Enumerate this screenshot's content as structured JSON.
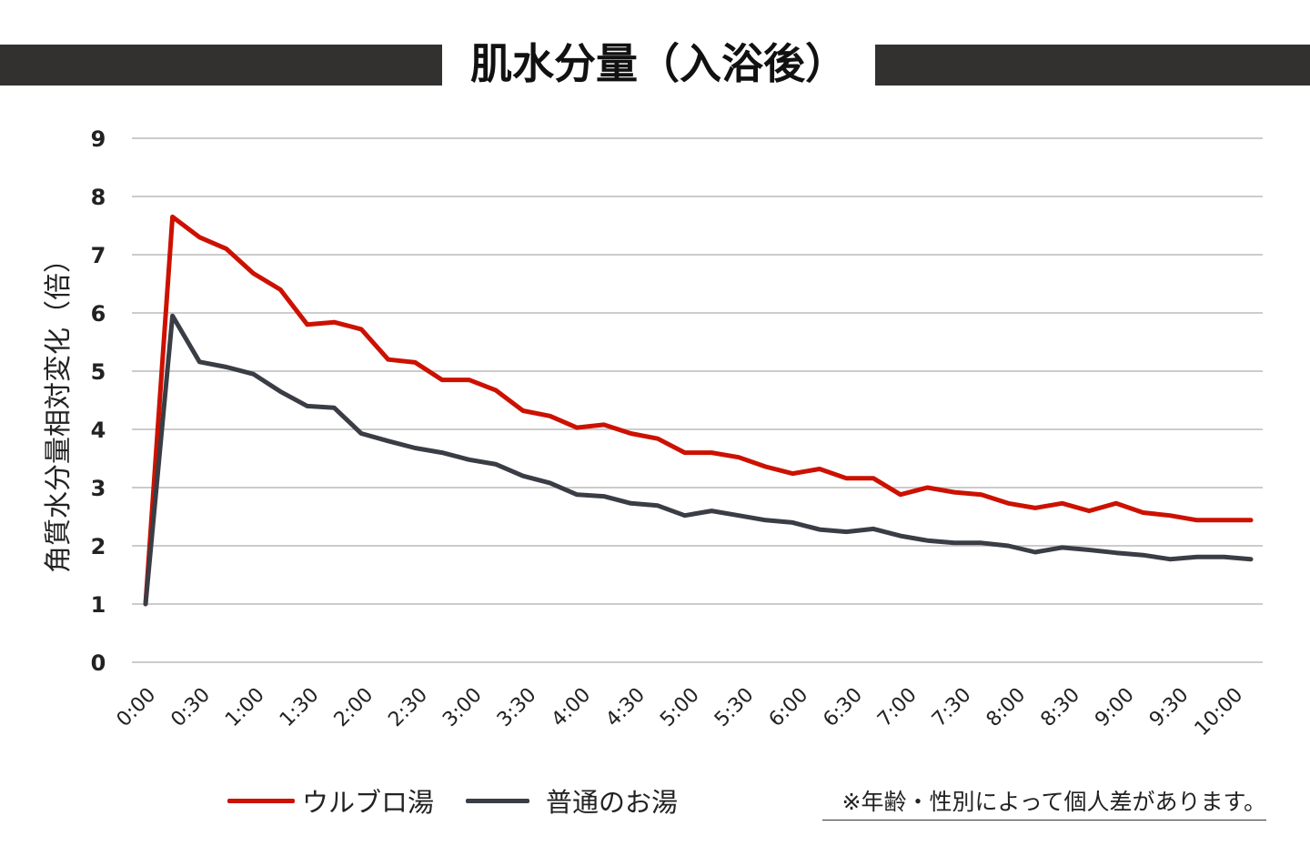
{
  "title": "肌水分量（入浴後）",
  "note": "※年齢・性別によって個人差があります。",
  "colors": {
    "header_band": "#333030",
    "grid": "#cccccc",
    "series_1": "#cc1100",
    "series_2": "#3a3d45"
  },
  "chart_data": {
    "type": "line",
    "title": "肌水分量（入浴後）",
    "xlabel": "",
    "ylabel": "角質水分量相対変化（倍）",
    "ylim": [
      0,
      9
    ],
    "yticks": [
      "0",
      "1",
      "2",
      "3",
      "4",
      "5",
      "6",
      "7",
      "8",
      "9"
    ],
    "xtick_labels": [
      "0:00",
      "0:30",
      "1:00",
      "1:30",
      "2:00",
      "2:30",
      "3:00",
      "3:30",
      "4:00",
      "4:30",
      "5:00",
      "5:30",
      "6:00",
      "6:30",
      "7:00",
      "7:30",
      "8:00",
      "8:30",
      "9:00",
      "9:30",
      "10:00"
    ],
    "grid": true,
    "legend_position": "bottom",
    "series": [
      {
        "name": "ウルブロ湯",
        "color": "#cc1100",
        "values": [
          1.0,
          7.65,
          7.3,
          7.1,
          6.68,
          6.4,
          5.8,
          5.84,
          5.72,
          5.2,
          5.15,
          4.85,
          4.85,
          4.67,
          4.32,
          4.23,
          4.03,
          4.08,
          3.93,
          3.84,
          3.6,
          3.6,
          3.52,
          3.36,
          3.24,
          3.32,
          3.16,
          3.16,
          2.88,
          3.0,
          2.92,
          2.88,
          2.73,
          2.65,
          2.73,
          2.6,
          2.73,
          2.57,
          2.52,
          2.44,
          2.44,
          2.44
        ]
      },
      {
        "name": "普通のお湯",
        "color": "#3a3d45",
        "values": [
          1.0,
          5.95,
          5.16,
          5.07,
          4.95,
          4.65,
          4.4,
          4.37,
          3.93,
          3.8,
          3.68,
          3.6,
          3.48,
          3.4,
          3.2,
          3.08,
          2.88,
          2.85,
          2.73,
          2.69,
          2.52,
          2.6,
          2.52,
          2.44,
          2.4,
          2.28,
          2.24,
          2.29,
          2.17,
          2.09,
          2.05,
          2.05,
          2.0,
          1.89,
          1.97,
          1.93,
          1.88,
          1.84,
          1.77,
          1.81,
          1.81,
          1.77
        ]
      }
    ]
  }
}
